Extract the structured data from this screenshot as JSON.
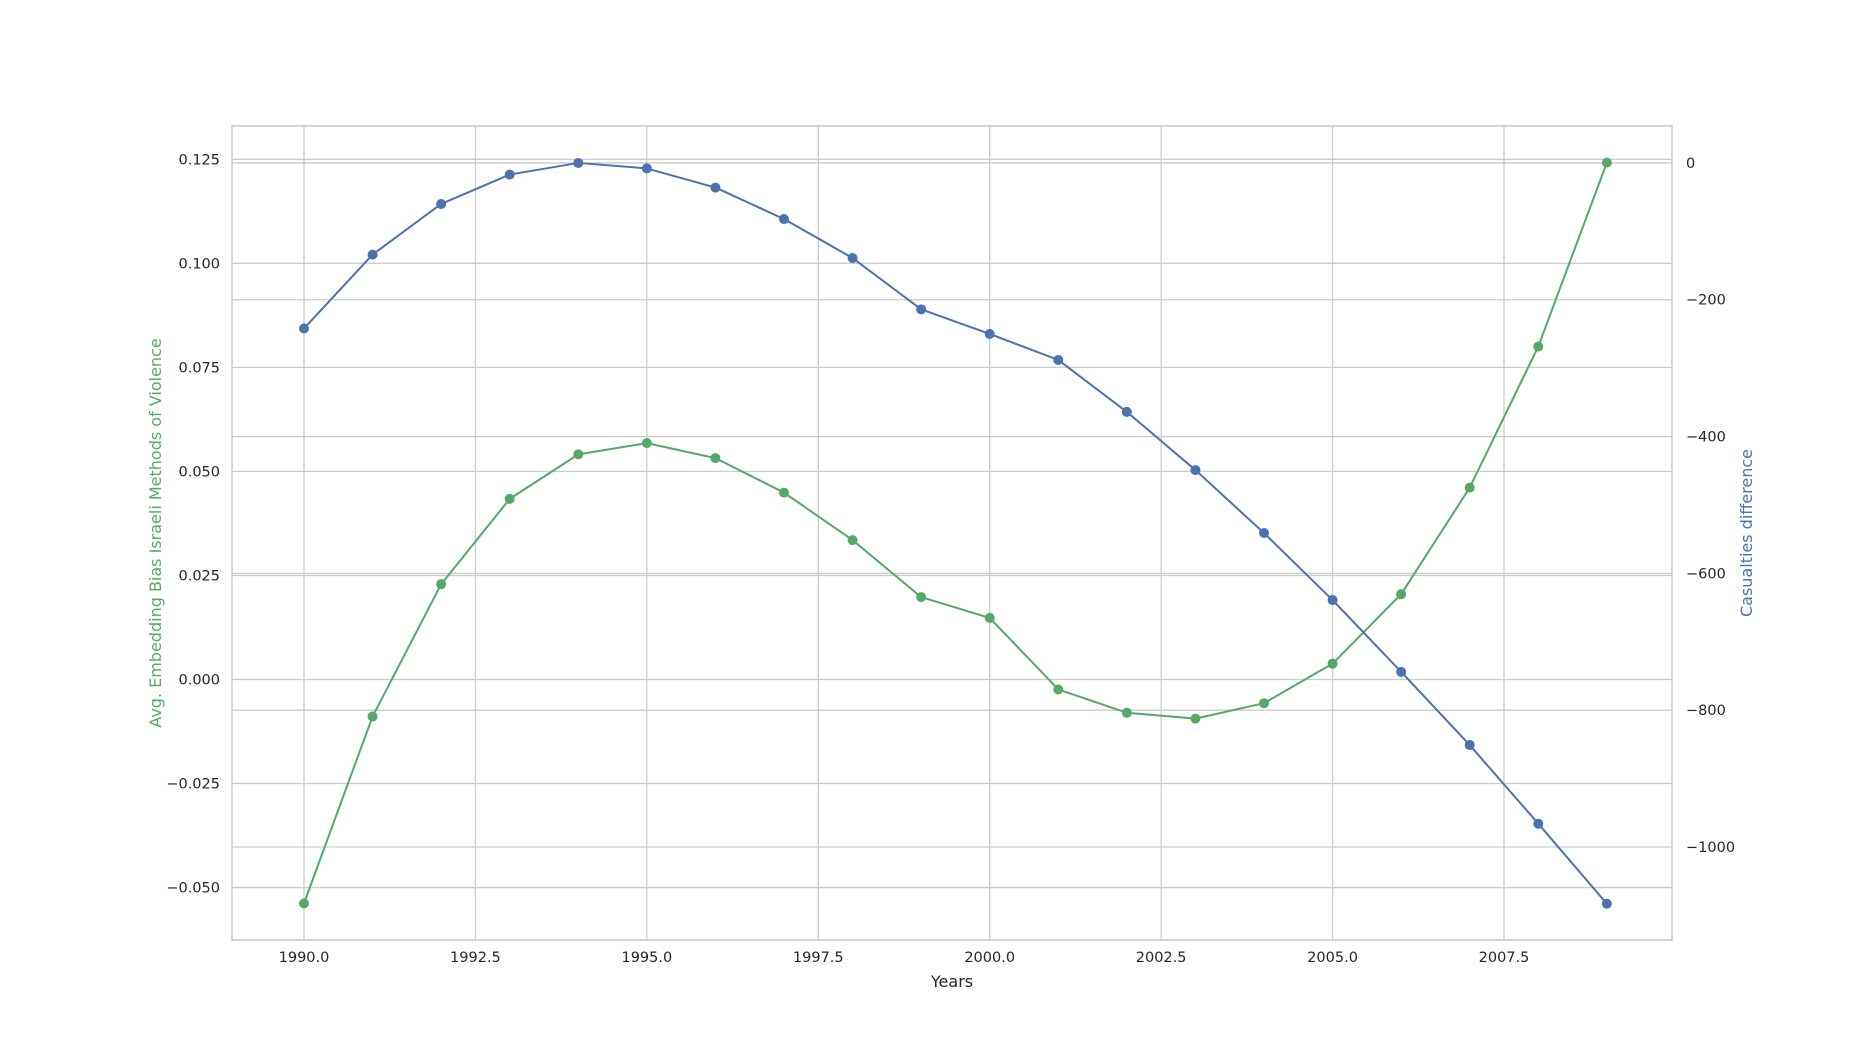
{
  "chart_data": {
    "type": "line",
    "title": "",
    "xlabel": "Years",
    "ylabel_left": "Avg. Embedding Bias Israeli Methods of Violence",
    "ylabel_right": "Casualties difference",
    "xlim": [
      1988.95,
      2009.95
    ],
    "ylim_left": [
      -0.0626,
      0.133
    ],
    "ylim_right": [
      -1136,
      54
    ],
    "grid": true,
    "legend": "none",
    "x_ticks": [
      1990.0,
      1992.5,
      1995.0,
      1997.5,
      2000.0,
      2002.5,
      2005.0,
      2007.5
    ],
    "x_tick_labels": [
      "1990.0",
      "1992.5",
      "1995.0",
      "1997.5",
      "2000.0",
      "2002.5",
      "2005.0",
      "2007.5"
    ],
    "y_left_ticks": [
      -0.05,
      -0.025,
      0.0,
      0.025,
      0.05,
      0.075,
      0.1,
      0.125
    ],
    "y_left_tick_labels": [
      "−0.050",
      "−0.025",
      "0.000",
      "0.025",
      "0.050",
      "0.075",
      "0.100",
      "0.125"
    ],
    "y_right_ticks": [
      0,
      -200,
      -400,
      -600,
      -800,
      -1000
    ],
    "y_right_tick_labels": [
      "0",
      "−200",
      "−400",
      "−600",
      "−800",
      "−1000"
    ],
    "x": [
      1990,
      1991,
      1992,
      1993,
      1994,
      1995,
      1996,
      1997,
      1998,
      1999,
      2000,
      2001,
      2002,
      2003,
      2004,
      2005,
      2006,
      2007,
      2008,
      2009
    ],
    "series": [
      {
        "axis": "left",
        "color": "#55a868",
        "values": [
          -0.0538,
          -0.0089,
          0.0229,
          0.0434,
          0.0541,
          0.0568,
          0.0532,
          0.0449,
          0.0335,
          0.0198,
          0.0148,
          -0.0024,
          -0.008,
          -0.0094,
          -0.0057,
          0.0038,
          0.0205,
          0.0461,
          0.08,
          0.1242
        ]
      },
      {
        "axis": "right",
        "color": "#4c72b0",
        "values": [
          -242,
          -134,
          -60,
          -17,
          0,
          -8,
          -36,
          -82,
          -139,
          -214,
          -250,
          -288,
          -364,
          -449,
          -541,
          -639,
          -744,
          -851,
          -966,
          -1083
        ]
      }
    ]
  }
}
